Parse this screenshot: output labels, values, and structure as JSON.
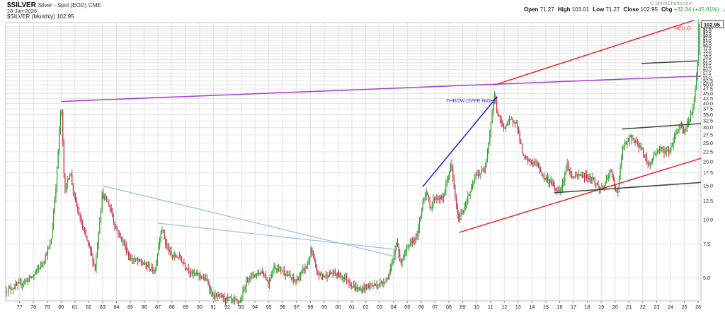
{
  "header": {
    "symbol": "$SILVER",
    "name": "Silver - Spot (EOD)",
    "exchange": "CME",
    "date": "23-Jan-2026",
    "legend": "$SILVER (Monthly) 102.95",
    "open_label": "Open",
    "open": "71.27",
    "high_label": "High",
    "high": "103.01",
    "low_label": "Low",
    "low": "71.27",
    "close_label": "Close",
    "close": "102.95",
    "chg_label": "Chg",
    "chg": "+32.34 (+45.81%)",
    "chg_arrow": "▲",
    "watermark": "© StockCharts.com"
  },
  "colors": {
    "up": "#2e9e2e",
    "down": "#c8304a",
    "grid": "#e3e3e3",
    "trend_red": "#e8262a",
    "trend_purple": "#a43bd8",
    "trend_blue": "#1f1fe6",
    "trend_light_blue": "#9cbfe6",
    "trend_dark": "#394a39"
  },
  "chart_data": {
    "type": "candlestick",
    "timeframe": "monthly",
    "y_scale": "log",
    "ylim": [
      3.8,
      105
    ],
    "xlim": [
      1976.0,
      2026.2
    ],
    "grid": true,
    "x_tick_labels": [
      "77",
      "78",
      "79",
      "80",
      "81",
      "82",
      "83",
      "84",
      "85",
      "86",
      "87",
      "88",
      "89",
      "90",
      "91",
      "92",
      "93",
      "94",
      "95",
      "96",
      "97",
      "98",
      "99",
      "00",
      "01",
      "02",
      "03",
      "04",
      "05",
      "06",
      "07",
      "08",
      "09",
      "10",
      "11",
      "12",
      "13",
      "14",
      "15",
      "16",
      "17",
      "18",
      "19",
      "20",
      "21",
      "22",
      "23",
      "24",
      "25",
      "26"
    ],
    "y_tick_labels": [
      "5.0",
      "7.5",
      "10.0",
      "12.5",
      "15.0",
      "17.5",
      "20.0",
      "22.5",
      "25.0",
      "27.5",
      "30.0",
      "32.5",
      "35.0",
      "37.5",
      "40.0",
      "42.5",
      "45.0",
      "47.5",
      "50.0",
      "52.5",
      "55.0",
      "57.5",
      "60.0",
      "62.5",
      "65.0",
      "67.5",
      "70.0",
      "72.5",
      "75.0",
      "77.5",
      "80.0",
      "82.5",
      "85.0",
      "87.5",
      "90.0",
      "92.5",
      "95.0",
      "97.5",
      "100.0"
    ],
    "last_value_label": "102.95",
    "price_path": [
      [
        1976.0,
        4.3
      ],
      [
        1977.0,
        4.6
      ],
      [
        1978.0,
        5.1
      ],
      [
        1978.7,
        6.0
      ],
      [
        1979.3,
        7.5
      ],
      [
        1979.7,
        16.0
      ],
      [
        1980.05,
        41.0
      ],
      [
        1980.3,
        14.0
      ],
      [
        1980.7,
        18.0
      ],
      [
        1981.0,
        13.0
      ],
      [
        1981.6,
        9.0
      ],
      [
        1982.0,
        7.5
      ],
      [
        1982.5,
        5.6
      ],
      [
        1983.0,
        13.5
      ],
      [
        1983.2,
        13.0
      ],
      [
        1983.6,
        11.5
      ],
      [
        1984.0,
        9.0
      ],
      [
        1984.6,
        7.5
      ],
      [
        1985.0,
        6.3
      ],
      [
        1985.6,
        6.1
      ],
      [
        1986.2,
        5.8
      ],
      [
        1986.8,
        5.4
      ],
      [
        1987.3,
        9.3
      ],
      [
        1987.6,
        7.5
      ],
      [
        1988.0,
        6.5
      ],
      [
        1988.6,
        6.4
      ],
      [
        1989.0,
        5.8
      ],
      [
        1989.6,
        5.2
      ],
      [
        1990.0,
        5.2
      ],
      [
        1990.6,
        4.8
      ],
      [
        1991.0,
        4.0
      ],
      [
        1991.6,
        4.0
      ],
      [
        1992.0,
        3.9
      ],
      [
        1992.6,
        3.75
      ],
      [
        1993.0,
        3.8
      ],
      [
        1993.5,
        5.0
      ],
      [
        1994.0,
        5.2
      ],
      [
        1994.6,
        5.4
      ],
      [
        1995.0,
        4.7
      ],
      [
        1995.4,
        5.7
      ],
      [
        1996.0,
        5.5
      ],
      [
        1996.6,
        5.0
      ],
      [
        1997.0,
        4.8
      ],
      [
        1997.9,
        6.0
      ],
      [
        1998.1,
        7.0
      ],
      [
        1998.5,
        5.3
      ],
      [
        1999.0,
        5.1
      ],
      [
        1999.6,
        5.3
      ],
      [
        2000.0,
        5.2
      ],
      [
        2000.6,
        5.0
      ],
      [
        2001.0,
        4.6
      ],
      [
        2001.6,
        4.3
      ],
      [
        2002.0,
        4.5
      ],
      [
        2002.6,
        4.6
      ],
      [
        2003.0,
        4.6
      ],
      [
        2003.6,
        5.0
      ],
      [
        2004.0,
        6.0
      ],
      [
        2004.3,
        8.0
      ],
      [
        2004.5,
        6.0
      ],
      [
        2005.0,
        7.0
      ],
      [
        2005.8,
        8.5
      ],
      [
        2006.2,
        13.0
      ],
      [
        2006.4,
        14.0
      ],
      [
        2006.7,
        11.5
      ],
      [
        2007.0,
        13.0
      ],
      [
        2007.6,
        12.8
      ],
      [
        2008.2,
        19.5
      ],
      [
        2008.7,
        10.0
      ],
      [
        2009.0,
        11.0
      ],
      [
        2009.6,
        14.0
      ],
      [
        2010.0,
        17.0
      ],
      [
        2010.6,
        18.0
      ],
      [
        2011.0,
        28.0
      ],
      [
        2011.3,
        45.0
      ],
      [
        2011.5,
        37.0
      ],
      [
        2011.7,
        33.0
      ],
      [
        2012.0,
        30.0
      ],
      [
        2012.3,
        32.0
      ],
      [
        2012.8,
        33.0
      ],
      [
        2013.0,
        30.0
      ],
      [
        2013.4,
        21.0
      ],
      [
        2013.9,
        20.0
      ],
      [
        2014.4,
        19.5
      ],
      [
        2014.9,
        16.5
      ],
      [
        2015.3,
        16.0
      ],
      [
        2015.9,
        14.0
      ],
      [
        2016.2,
        15.0
      ],
      [
        2016.6,
        19.5
      ],
      [
        2016.9,
        16.5
      ],
      [
        2017.4,
        17.0
      ],
      [
        2017.9,
        16.8
      ],
      [
        2018.4,
        16.4
      ],
      [
        2018.9,
        14.5
      ],
      [
        2019.3,
        15.0
      ],
      [
        2019.7,
        18.0
      ],
      [
        2020.2,
        13.5
      ],
      [
        2020.6,
        24.0
      ],
      [
        2020.9,
        25.0
      ],
      [
        2021.2,
        27.0
      ],
      [
        2021.6,
        25.0
      ],
      [
        2022.0,
        23.0
      ],
      [
        2022.5,
        19.0
      ],
      [
        2022.9,
        22.0
      ],
      [
        2023.3,
        23.5
      ],
      [
        2023.7,
        22.5
      ],
      [
        2024.0,
        22.8
      ],
      [
        2024.4,
        28.0
      ],
      [
        2024.8,
        31.0
      ],
      [
        2025.0,
        29.0
      ],
      [
        2025.4,
        33.0
      ],
      [
        2025.7,
        39.0
      ],
      [
        2025.85,
        48.0
      ],
      [
        2025.95,
        58.0
      ],
      [
        2026.05,
        71.3
      ],
      [
        2026.07,
        102.95
      ]
    ],
    "trendlines": [
      {
        "color": "trend_red",
        "from": [
          2011.25,
          49.8
        ],
        "to": [
          2025.7,
          108.0
        ]
      },
      {
        "color": "trend_red",
        "from": [
          2008.75,
          8.6
        ],
        "to": [
          2026.2,
          20.8
        ]
      },
      {
        "color": "trend_purple",
        "from": [
          1980.0,
          41.0
        ],
        "to": [
          2026.2,
          55.5
        ]
      },
      {
        "color": "trend_blue",
        "from": [
          2006.1,
          14.8
        ],
        "to": [
          2011.5,
          43.5
        ]
      },
      {
        "color": "trend_light_blue",
        "from": [
          1983.0,
          15.0
        ],
        "to": [
          2004.7,
          6.3
        ]
      },
      {
        "color": "trend_light_blue",
        "from": [
          1987.0,
          9.6
        ],
        "to": [
          2004.3,
          7.0
        ]
      },
      {
        "color": "trend_dark",
        "from": [
          2020.5,
          29.5
        ],
        "to": [
          2026.2,
          31.5
        ]
      },
      {
        "color": "trend_dark",
        "from": [
          2015.6,
          13.8
        ],
        "to": [
          2026.2,
          15.6
        ]
      },
      {
        "color": "trend_dark",
        "from": [
          2021.9,
          64.5
        ],
        "to": [
          2025.9,
          66.5
        ]
      }
    ],
    "annotations": [
      {
        "text": "THROW OVER HIGH",
        "color": "trend_blue",
        "x": 2007.8,
        "y": 40.5
      },
      {
        "text": "HELLO",
        "color": "trend_red",
        "x": 2024.3,
        "y": 96.0
      }
    ]
  }
}
